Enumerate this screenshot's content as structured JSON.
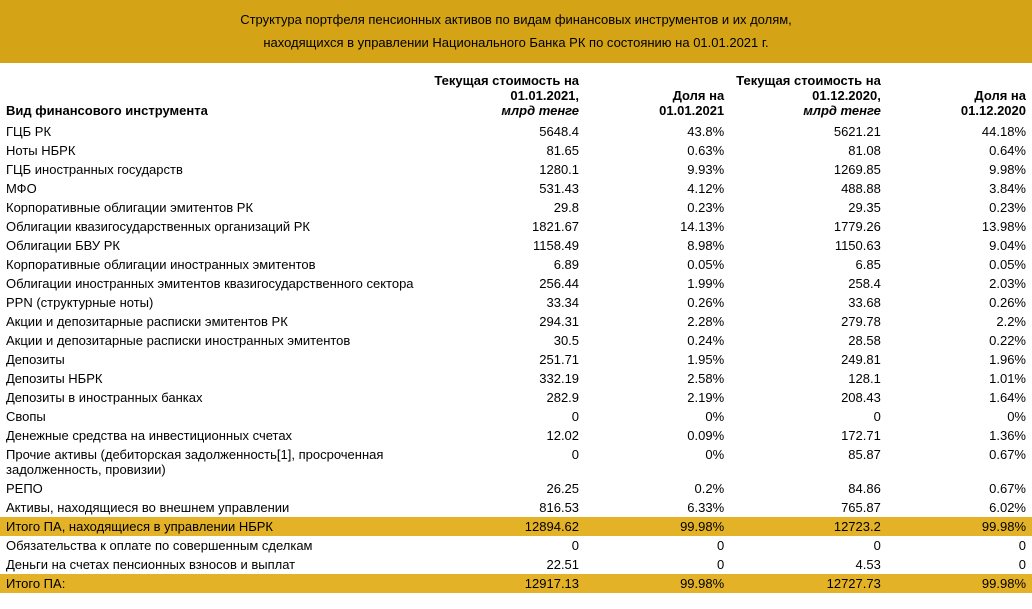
{
  "header": {
    "line1": "Структура портфеля пенсионных активов по видам финансовых инструментов и их долям,",
    "line2": "находящихся в управлении Национального Банка РК по состоянию на 01.01.2021 г."
  },
  "columns": {
    "c0": "Вид финансового инструмента",
    "c1_l1": "Текущая стоимость на",
    "c1_l2": "01.01.2021,",
    "c1_l3": "млрд тенге",
    "c2_l1": "Доля на",
    "c2_l2": "01.01.2021",
    "c3_l1": "Текущая стоимость на",
    "c3_l2": "01.12.2020,",
    "c3_l3": "млрд тенге",
    "c4_l1": "Доля на",
    "c4_l2": "01.12.2020"
  },
  "rows": [
    {
      "label": "ГЦБ РК",
      "v1": "5648.4",
      "v2": "43.8%",
      "v3": "5621.21",
      "v4": "44.18%",
      "hl": false
    },
    {
      "label": "Ноты НБРК",
      "v1": "81.65",
      "v2": "0.63%",
      "v3": "81.08",
      "v4": "0.64%",
      "hl": false
    },
    {
      "label": "ГЦБ иностранных государств",
      "v1": "1280.1",
      "v2": "9.93%",
      "v3": "1269.85",
      "v4": "9.98%",
      "hl": false
    },
    {
      "label": "МФО",
      "v1": "531.43",
      "v2": "4.12%",
      "v3": "488.88",
      "v4": "3.84%",
      "hl": false
    },
    {
      "label": "Корпоративные облигации эмитентов РК",
      "v1": "29.8",
      "v2": "0.23%",
      "v3": "29.35",
      "v4": "0.23%",
      "hl": false
    },
    {
      "label": "Облигации квазигосударственных организаций РК",
      "v1": "1821.67",
      "v2": "14.13%",
      "v3": "1779.26",
      "v4": "13.98%",
      "hl": false
    },
    {
      "label": "Облигации БВУ РК",
      "v1": "1158.49",
      "v2": "8.98%",
      "v3": "1150.63",
      "v4": "9.04%",
      "hl": false
    },
    {
      "label": "Корпоративные облигации иностранных эмитентов",
      "v1": "6.89",
      "v2": "0.05%",
      "v3": "6.85",
      "v4": "0.05%",
      "hl": false
    },
    {
      "label": "Облигации иностранных эмитентов квазигосударственного сектора",
      "v1": "256.44",
      "v2": "1.99%",
      "v3": "258.4",
      "v4": "2.03%",
      "hl": false
    },
    {
      "label": "PPN (структурные ноты)",
      "v1": "33.34",
      "v2": "0.26%",
      "v3": "33.68",
      "v4": "0.26%",
      "hl": false
    },
    {
      "label": "Акции и депозитарные расписки эмитентов РК",
      "v1": "294.31",
      "v2": "2.28%",
      "v3": "279.78",
      "v4": "2.2%",
      "hl": false
    },
    {
      "label": "Акции и депозитарные расписки иностранных эмитентов",
      "v1": "30.5",
      "v2": "0.24%",
      "v3": "28.58",
      "v4": "0.22%",
      "hl": false
    },
    {
      "label": "Депозиты",
      "v1": "251.71",
      "v2": "1.95%",
      "v3": "249.81",
      "v4": "1.96%",
      "hl": false
    },
    {
      "label": "Депозиты НБРК",
      "v1": "332.19",
      "v2": "2.58%",
      "v3": "128.1",
      "v4": "1.01%",
      "hl": false
    },
    {
      "label": "Депозиты в иностранных банках",
      "v1": "282.9",
      "v2": "2.19%",
      "v3": "208.43",
      "v4": "1.64%",
      "hl": false
    },
    {
      "label": "Свопы",
      "v1": "0",
      "v2": "0%",
      "v3": "0",
      "v4": "0%",
      "hl": false
    },
    {
      "label": "Денежные средства на инвестиционных счетах",
      "v1": "12.02",
      "v2": "0.09%",
      "v3": "172.71",
      "v4": "1.36%",
      "hl": false
    },
    {
      "label": "Прочие активы (дебиторская задолженность[1], просроченная задолженность, провизии)",
      "v1": "0",
      "v2": "0%",
      "v3": "85.87",
      "v4": "0.67%",
      "hl": false
    },
    {
      "label": "РЕПО",
      "v1": "26.25",
      "v2": "0.2%",
      "v3": "84.86",
      "v4": "0.67%",
      "hl": false
    },
    {
      "label": "Активы, находящиеся во внешнем управлении",
      "v1": "816.53",
      "v2": "6.33%",
      "v3": "765.87",
      "v4": "6.02%",
      "hl": false
    },
    {
      "label": "Итого ПА, находящиеся в управлении НБРК",
      "v1": "12894.62",
      "v2": "99.98%",
      "v3": "12723.2",
      "v4": "99.98%",
      "hl": true
    },
    {
      "label": "Обязательства к оплате по совершенным сделкам",
      "v1": "0",
      "v2": "0",
      "v3": "0",
      "v4": "0",
      "hl": false
    },
    {
      "label": "Деньги на счетах пенсионных взносов и выплат",
      "v1": "22.51",
      "v2": "0",
      "v3": "4.53",
      "v4": "0",
      "hl": false
    },
    {
      "label": "Итого ПА:",
      "v1": "12917.13",
      "v2": "99.98%",
      "v3": "12727.73",
      "v4": "99.98%",
      "hl": true
    }
  ],
  "style": {
    "header_bg": "#d4a416",
    "highlight_bg": "#e4b227"
  }
}
